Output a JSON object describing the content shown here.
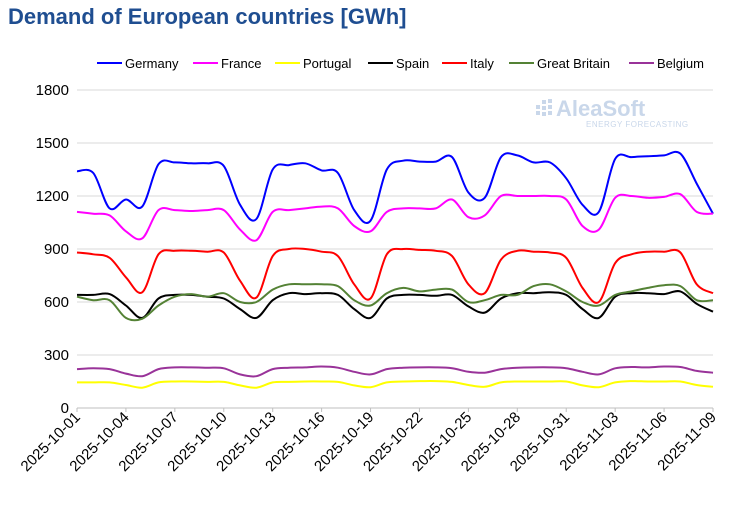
{
  "title": "Demand of European countries [GWh]",
  "watermark": {
    "main": "AleaSoft",
    "sub": "ENERGY FORECASTING"
  },
  "chart_data": {
    "type": "line",
    "title": "Demand of European countries [GWh]",
    "xlabel": "",
    "ylabel": "",
    "ylim": [
      0,
      1800
    ],
    "y_ticks": [
      0,
      300,
      600,
      900,
      1200,
      1500,
      1800
    ],
    "grid": true,
    "legend_position": "top",
    "x": [
      "2025-10-01",
      "2025-10-02",
      "2025-10-03",
      "2025-10-04",
      "2025-10-05",
      "2025-10-06",
      "2025-10-07",
      "2025-10-08",
      "2025-10-09",
      "2025-10-10",
      "2025-10-11",
      "2025-10-12",
      "2025-10-13",
      "2025-10-14",
      "2025-10-15",
      "2025-10-16",
      "2025-10-17",
      "2025-10-18",
      "2025-10-19",
      "2025-10-20",
      "2025-10-21",
      "2025-10-22",
      "2025-10-23",
      "2025-10-24",
      "2025-10-25",
      "2025-10-26",
      "2025-10-27",
      "2025-10-28",
      "2025-10-29",
      "2025-10-30",
      "2025-10-31",
      "2025-11-01",
      "2025-11-02",
      "2025-11-03",
      "2025-11-04",
      "2025-11-05",
      "2025-11-06",
      "2025-11-07",
      "2025-11-08",
      "2025-11-09"
    ],
    "x_tick_labels": [
      "2025-10-01",
      "2025-10-04",
      "2025-10-07",
      "2025-10-10",
      "2025-10-13",
      "2025-10-16",
      "2025-10-19",
      "2025-10-22",
      "2025-10-25",
      "2025-10-28",
      "2025-10-31",
      "2025-11-03",
      "2025-11-06",
      "2025-11-09"
    ],
    "series": [
      {
        "name": "Germany",
        "color": "#0000ff",
        "values": [
          1340,
          1330,
          1130,
          1180,
          1140,
          1380,
          1390,
          1385,
          1385,
          1370,
          1150,
          1070,
          1350,
          1375,
          1385,
          1345,
          1330,
          1120,
          1060,
          1350,
          1400,
          1395,
          1395,
          1420,
          1220,
          1190,
          1420,
          1430,
          1390,
          1390,
          1300,
          1150,
          1110,
          1410,
          1420,
          1425,
          1430,
          1440,
          1270,
          1100
        ]
      },
      {
        "name": "France",
        "color": "#ff00ff",
        "values": [
          1110,
          1100,
          1090,
          1000,
          960,
          1120,
          1120,
          1115,
          1120,
          1120,
          1010,
          950,
          1110,
          1120,
          1130,
          1140,
          1130,
          1030,
          1000,
          1110,
          1130,
          1130,
          1130,
          1180,
          1080,
          1090,
          1200,
          1200,
          1200,
          1200,
          1180,
          1030,
          1010,
          1190,
          1200,
          1190,
          1195,
          1210,
          1110,
          1100
        ]
      },
      {
        "name": "Portugal",
        "color": "#ffff00",
        "values": [
          145,
          145,
          145,
          130,
          115,
          145,
          150,
          150,
          148,
          148,
          128,
          115,
          145,
          148,
          150,
          150,
          148,
          128,
          118,
          145,
          150,
          152,
          152,
          148,
          130,
          120,
          145,
          150,
          150,
          150,
          150,
          128,
          118,
          145,
          152,
          150,
          150,
          150,
          130,
          120
        ]
      },
      {
        "name": "Spain",
        "color": "#000000",
        "values": [
          640,
          640,
          645,
          580,
          510,
          620,
          640,
          640,
          630,
          620,
          560,
          510,
          610,
          650,
          645,
          650,
          640,
          560,
          510,
          620,
          640,
          640,
          635,
          640,
          575,
          540,
          620,
          650,
          650,
          655,
          640,
          560,
          510,
          630,
          650,
          650,
          645,
          660,
          590,
          545
        ]
      },
      {
        "name": "Italy",
        "color": "#ff0000",
        "values": [
          880,
          870,
          850,
          740,
          655,
          870,
          890,
          890,
          885,
          880,
          720,
          625,
          860,
          900,
          900,
          885,
          860,
          700,
          620,
          870,
          900,
          895,
          890,
          860,
          700,
          650,
          840,
          890,
          885,
          880,
          850,
          680,
          600,
          820,
          870,
          885,
          885,
          880,
          700,
          650
        ]
      },
      {
        "name": "Great Britain",
        "color": "#548235",
        "values": [
          630,
          610,
          610,
          510,
          505,
          580,
          630,
          645,
          630,
          650,
          600,
          600,
          670,
          700,
          700,
          700,
          690,
          610,
          580,
          650,
          680,
          660,
          670,
          670,
          600,
          610,
          640,
          640,
          690,
          700,
          660,
          600,
          580,
          640,
          660,
          680,
          695,
          690,
          610,
          610
        ]
      },
      {
        "name": "Belgium",
        "color": "#993399",
        "values": [
          220,
          225,
          220,
          195,
          180,
          220,
          230,
          230,
          228,
          225,
          190,
          180,
          220,
          228,
          230,
          235,
          228,
          205,
          190,
          220,
          228,
          230,
          230,
          225,
          205,
          200,
          220,
          228,
          230,
          230,
          225,
          205,
          190,
          225,
          232,
          230,
          235,
          232,
          210,
          200
        ]
      }
    ]
  }
}
